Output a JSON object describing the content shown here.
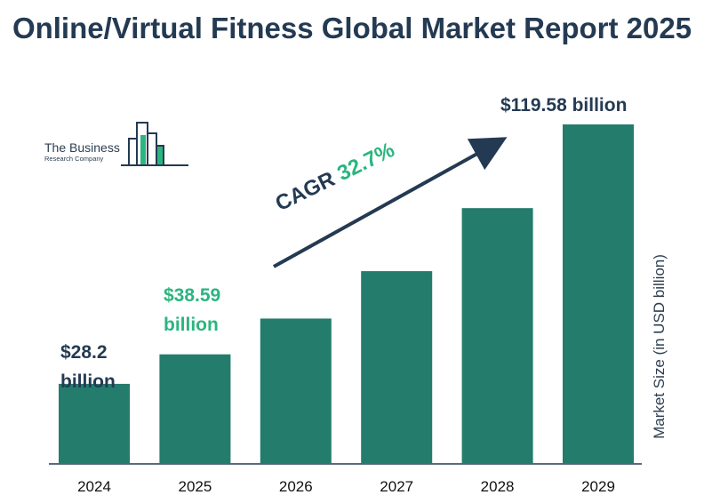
{
  "title": "Online/Virtual Fitness Global Market Report 2025",
  "logo": {
    "line1": "The Business",
    "line2": "Research Company"
  },
  "colors": {
    "bar": "#247c6c",
    "title": "#243a52",
    "highlight": "#2bb57f",
    "text": "#2c3e50"
  },
  "cagr": {
    "label": "CAGR",
    "value": "32.7%"
  },
  "value_labels": {
    "v2024": [
      "$28.2",
      "billion"
    ],
    "v2025": [
      "$38.59",
      "billion"
    ],
    "v2029": "$119.58 billion"
  },
  "chart_data": {
    "type": "bar",
    "categories": [
      "2024",
      "2025",
      "2026",
      "2027",
      "2028",
      "2029"
    ],
    "values": [
      28.2,
      38.59,
      51.2,
      67.9,
      90.1,
      119.58
    ],
    "ylabel": "Market Size (in USD billion)",
    "ylim": [
      0,
      119.58
    ],
    "grid": false
  }
}
